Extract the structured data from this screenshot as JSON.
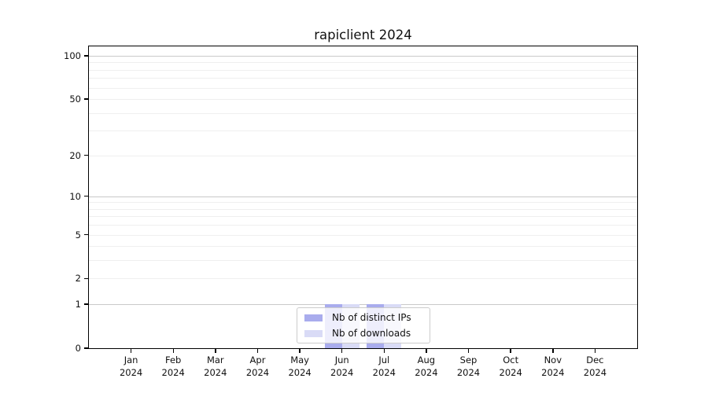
{
  "chart_data": {
    "type": "bar",
    "title": "rapiclient 2024",
    "categories": [
      "Jan",
      "Feb",
      "Mar",
      "Apr",
      "May",
      "Jun",
      "Jul",
      "Aug",
      "Sep",
      "Oct",
      "Nov",
      "Dec"
    ],
    "category_year": "2024",
    "series": [
      {
        "name": "Nb of distinct IPs",
        "color": "#a9aced",
        "values": [
          0,
          0,
          0,
          0,
          0,
          1,
          1,
          0,
          0,
          0,
          0,
          0
        ]
      },
      {
        "name": "Nb of downloads",
        "color": "#d9dbf6",
        "values": [
          0,
          0,
          0,
          0,
          0,
          1,
          1,
          0,
          0,
          0,
          0,
          0
        ]
      }
    ],
    "xlabel": "",
    "ylabel": "",
    "y_scale": "log1p",
    "ylim": [
      0,
      115
    ],
    "y_ticks": [
      0,
      1,
      2,
      5,
      10,
      20,
      50,
      100
    ],
    "y_major_gridlines": [
      1,
      10,
      100
    ],
    "y_minor_gridlines": [
      2,
      3,
      4,
      5,
      6,
      7,
      8,
      9,
      20,
      30,
      40,
      50,
      60,
      70,
      80,
      90
    ],
    "grid": true,
    "legend_position": "bottom-center-inside"
  },
  "colors": {
    "major_grid": "#c9c9c9",
    "minor_grid": "#efefef",
    "axis": "#000000",
    "text": "#111111",
    "legend_border": "#cccccc",
    "legend_bg": "rgba(255,255,255,0.8)"
  }
}
